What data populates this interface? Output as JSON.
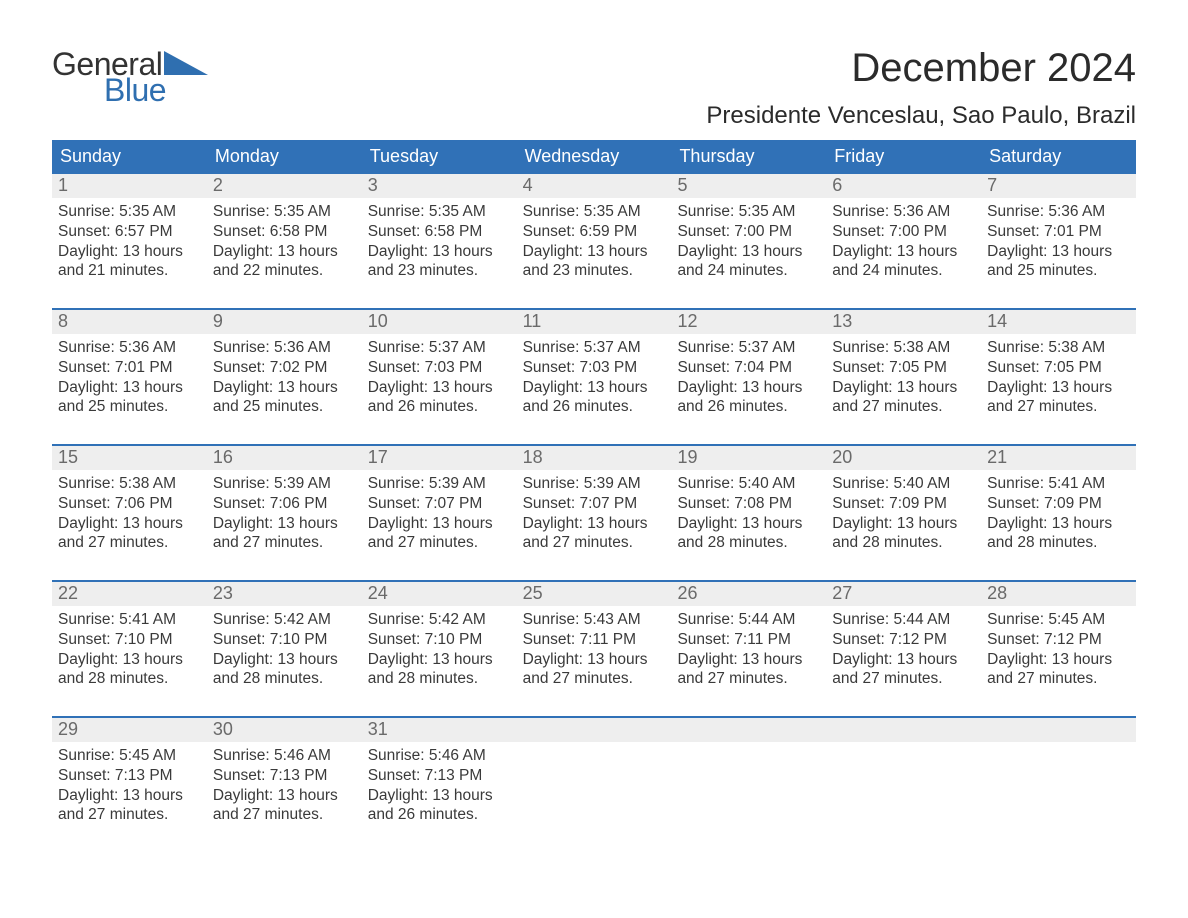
{
  "brand": {
    "word1": "General",
    "word2": "Blue",
    "word1_color": "#333333",
    "word2_color": "#2f6fb0",
    "triangle_color": "#2f6fb0"
  },
  "title": "December 2024",
  "location": "Presidente Venceslau, Sao Paulo, Brazil",
  "colors": {
    "header_bg": "#3071b7",
    "header_text": "#ffffff",
    "week_top_border": "#3071b7",
    "daynum_bg": "#eeeeee",
    "daynum_text": "#6a6a6a",
    "body_text": "#3a3a3a",
    "page_bg": "#ffffff"
  },
  "fonts": {
    "title_size_pt": 30,
    "location_size_pt": 18,
    "dow_size_pt": 14,
    "daynum_size_pt": 14,
    "body_size_pt": 12
  },
  "days_of_week": [
    "Sunday",
    "Monday",
    "Tuesday",
    "Wednesday",
    "Thursday",
    "Friday",
    "Saturday"
  ],
  "weeks": [
    [
      {
        "n": "1",
        "sr": "Sunrise: 5:35 AM",
        "ss": "Sunset: 6:57 PM",
        "d1": "Daylight: 13 hours",
        "d2": "and 21 minutes."
      },
      {
        "n": "2",
        "sr": "Sunrise: 5:35 AM",
        "ss": "Sunset: 6:58 PM",
        "d1": "Daylight: 13 hours",
        "d2": "and 22 minutes."
      },
      {
        "n": "3",
        "sr": "Sunrise: 5:35 AM",
        "ss": "Sunset: 6:58 PM",
        "d1": "Daylight: 13 hours",
        "d2": "and 23 minutes."
      },
      {
        "n": "4",
        "sr": "Sunrise: 5:35 AM",
        "ss": "Sunset: 6:59 PM",
        "d1": "Daylight: 13 hours",
        "d2": "and 23 minutes."
      },
      {
        "n": "5",
        "sr": "Sunrise: 5:35 AM",
        "ss": "Sunset: 7:00 PM",
        "d1": "Daylight: 13 hours",
        "d2": "and 24 minutes."
      },
      {
        "n": "6",
        "sr": "Sunrise: 5:36 AM",
        "ss": "Sunset: 7:00 PM",
        "d1": "Daylight: 13 hours",
        "d2": "and 24 minutes."
      },
      {
        "n": "7",
        "sr": "Sunrise: 5:36 AM",
        "ss": "Sunset: 7:01 PM",
        "d1": "Daylight: 13 hours",
        "d2": "and 25 minutes."
      }
    ],
    [
      {
        "n": "8",
        "sr": "Sunrise: 5:36 AM",
        "ss": "Sunset: 7:01 PM",
        "d1": "Daylight: 13 hours",
        "d2": "and 25 minutes."
      },
      {
        "n": "9",
        "sr": "Sunrise: 5:36 AM",
        "ss": "Sunset: 7:02 PM",
        "d1": "Daylight: 13 hours",
        "d2": "and 25 minutes."
      },
      {
        "n": "10",
        "sr": "Sunrise: 5:37 AM",
        "ss": "Sunset: 7:03 PM",
        "d1": "Daylight: 13 hours",
        "d2": "and 26 minutes."
      },
      {
        "n": "11",
        "sr": "Sunrise: 5:37 AM",
        "ss": "Sunset: 7:03 PM",
        "d1": "Daylight: 13 hours",
        "d2": "and 26 minutes."
      },
      {
        "n": "12",
        "sr": "Sunrise: 5:37 AM",
        "ss": "Sunset: 7:04 PM",
        "d1": "Daylight: 13 hours",
        "d2": "and 26 minutes."
      },
      {
        "n": "13",
        "sr": "Sunrise: 5:38 AM",
        "ss": "Sunset: 7:05 PM",
        "d1": "Daylight: 13 hours",
        "d2": "and 27 minutes."
      },
      {
        "n": "14",
        "sr": "Sunrise: 5:38 AM",
        "ss": "Sunset: 7:05 PM",
        "d1": "Daylight: 13 hours",
        "d2": "and 27 minutes."
      }
    ],
    [
      {
        "n": "15",
        "sr": "Sunrise: 5:38 AM",
        "ss": "Sunset: 7:06 PM",
        "d1": "Daylight: 13 hours",
        "d2": "and 27 minutes."
      },
      {
        "n": "16",
        "sr": "Sunrise: 5:39 AM",
        "ss": "Sunset: 7:06 PM",
        "d1": "Daylight: 13 hours",
        "d2": "and 27 minutes."
      },
      {
        "n": "17",
        "sr": "Sunrise: 5:39 AM",
        "ss": "Sunset: 7:07 PM",
        "d1": "Daylight: 13 hours",
        "d2": "and 27 minutes."
      },
      {
        "n": "18",
        "sr": "Sunrise: 5:39 AM",
        "ss": "Sunset: 7:07 PM",
        "d1": "Daylight: 13 hours",
        "d2": "and 27 minutes."
      },
      {
        "n": "19",
        "sr": "Sunrise: 5:40 AM",
        "ss": "Sunset: 7:08 PM",
        "d1": "Daylight: 13 hours",
        "d2": "and 28 minutes."
      },
      {
        "n": "20",
        "sr": "Sunrise: 5:40 AM",
        "ss": "Sunset: 7:09 PM",
        "d1": "Daylight: 13 hours",
        "d2": "and 28 minutes."
      },
      {
        "n": "21",
        "sr": "Sunrise: 5:41 AM",
        "ss": "Sunset: 7:09 PM",
        "d1": "Daylight: 13 hours",
        "d2": "and 28 minutes."
      }
    ],
    [
      {
        "n": "22",
        "sr": "Sunrise: 5:41 AM",
        "ss": "Sunset: 7:10 PM",
        "d1": "Daylight: 13 hours",
        "d2": "and 28 minutes."
      },
      {
        "n": "23",
        "sr": "Sunrise: 5:42 AM",
        "ss": "Sunset: 7:10 PM",
        "d1": "Daylight: 13 hours",
        "d2": "and 28 minutes."
      },
      {
        "n": "24",
        "sr": "Sunrise: 5:42 AM",
        "ss": "Sunset: 7:10 PM",
        "d1": "Daylight: 13 hours",
        "d2": "and 28 minutes."
      },
      {
        "n": "25",
        "sr": "Sunrise: 5:43 AM",
        "ss": "Sunset: 7:11 PM",
        "d1": "Daylight: 13 hours",
        "d2": "and 27 minutes."
      },
      {
        "n": "26",
        "sr": "Sunrise: 5:44 AM",
        "ss": "Sunset: 7:11 PM",
        "d1": "Daylight: 13 hours",
        "d2": "and 27 minutes."
      },
      {
        "n": "27",
        "sr": "Sunrise: 5:44 AM",
        "ss": "Sunset: 7:12 PM",
        "d1": "Daylight: 13 hours",
        "d2": "and 27 minutes."
      },
      {
        "n": "28",
        "sr": "Sunrise: 5:45 AM",
        "ss": "Sunset: 7:12 PM",
        "d1": "Daylight: 13 hours",
        "d2": "and 27 minutes."
      }
    ],
    [
      {
        "n": "29",
        "sr": "Sunrise: 5:45 AM",
        "ss": "Sunset: 7:13 PM",
        "d1": "Daylight: 13 hours",
        "d2": "and 27 minutes."
      },
      {
        "n": "30",
        "sr": "Sunrise: 5:46 AM",
        "ss": "Sunset: 7:13 PM",
        "d1": "Daylight: 13 hours",
        "d2": "and 27 minutes."
      },
      {
        "n": "31",
        "sr": "Sunrise: 5:46 AM",
        "ss": "Sunset: 7:13 PM",
        "d1": "Daylight: 13 hours",
        "d2": "and 26 minutes."
      },
      null,
      null,
      null,
      null
    ]
  ]
}
